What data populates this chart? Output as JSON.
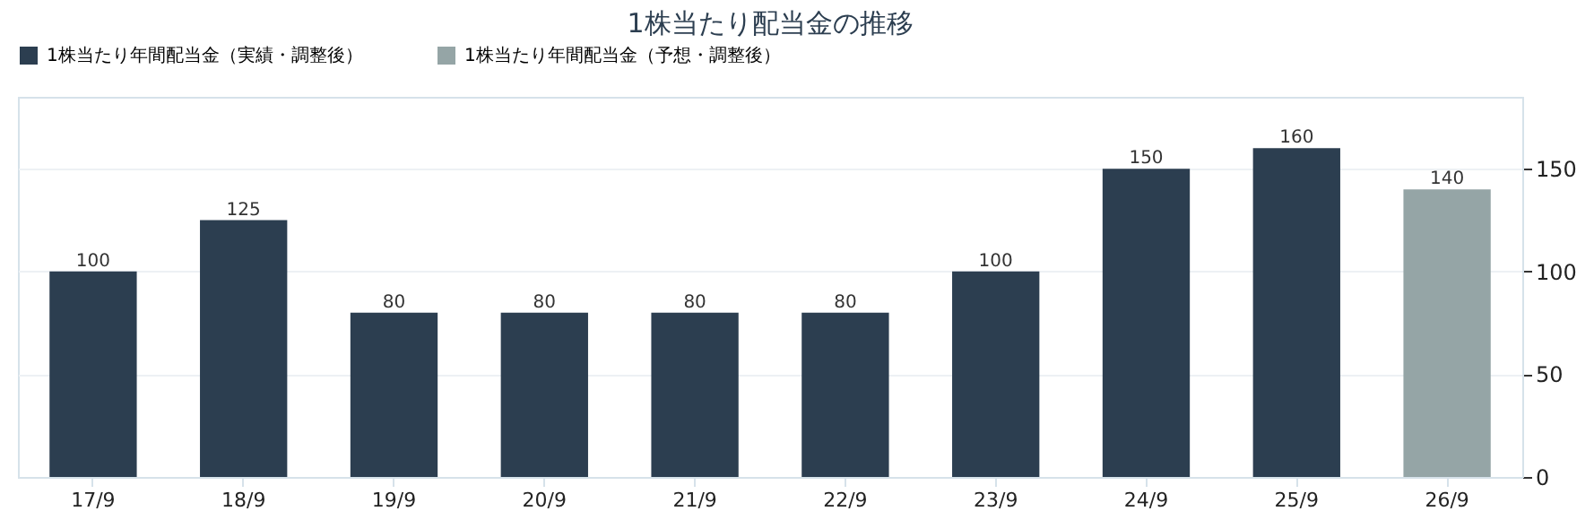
{
  "chart_data": {
    "type": "bar",
    "title": "1株当たり配当金の推移",
    "categories": [
      "17/9",
      "18/9",
      "19/9",
      "20/9",
      "21/9",
      "22/9",
      "23/9",
      "24/9",
      "25/9",
      "26/9"
    ],
    "series": [
      {
        "name": "1株当たり年間配当金（実績・調整後）",
        "color": "#2c3e50",
        "values": [
          100,
          125,
          80,
          80,
          80,
          80,
          100,
          150,
          160,
          null
        ]
      },
      {
        "name": "1株当たり年間配当金（予想・調整後）",
        "color": "#95a5a6",
        "values": [
          null,
          null,
          null,
          null,
          null,
          null,
          null,
          null,
          null,
          140
        ]
      }
    ],
    "ylim": [
      0,
      185
    ],
    "yticks": [
      0,
      50,
      100,
      150
    ],
    "grid": "y",
    "legend": "top",
    "data_labels": true
  }
}
